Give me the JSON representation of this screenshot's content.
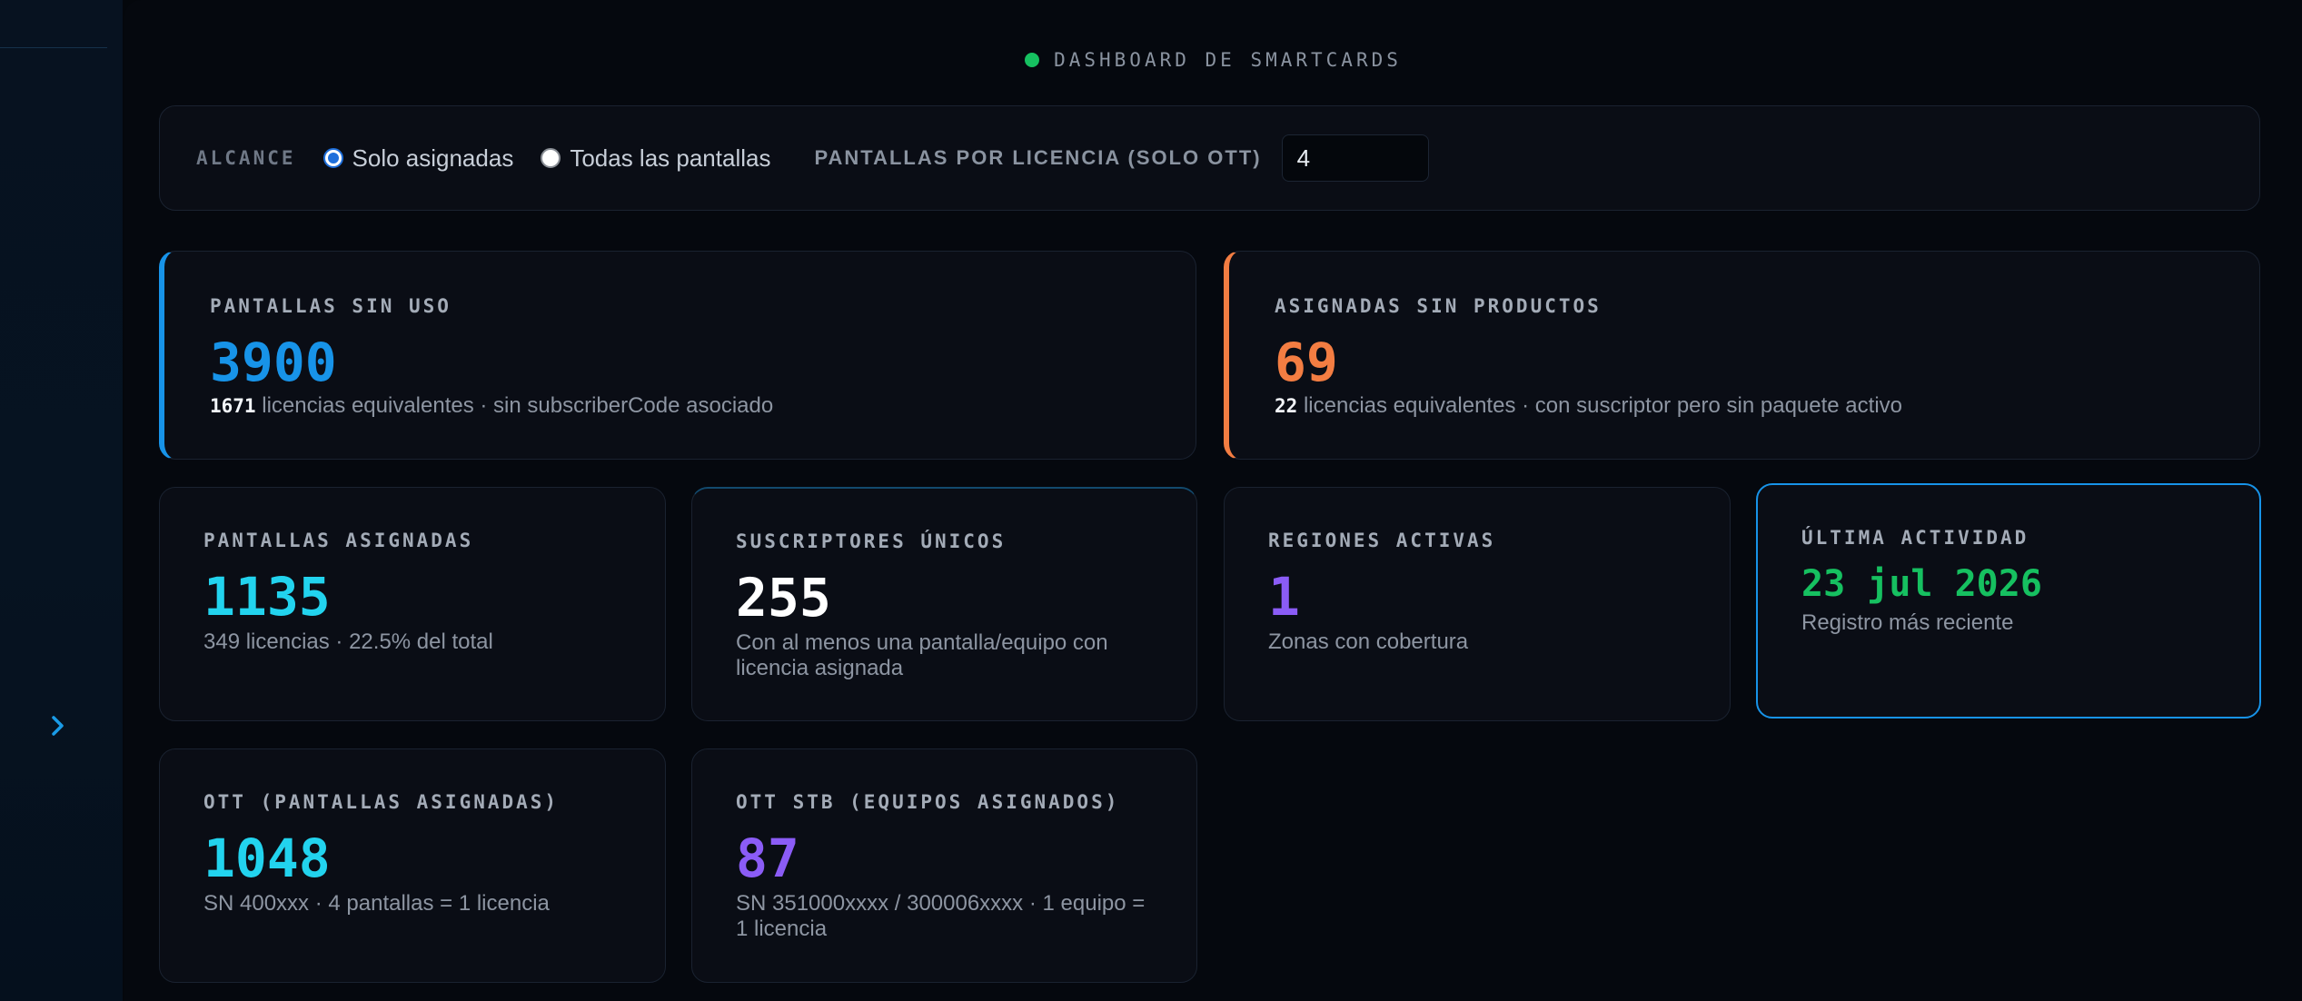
{
  "header": {
    "title": "DASHBOARD DE SMARTCARDS"
  },
  "scope": {
    "label": "ALCANCE",
    "options": [
      {
        "label": "Solo asignadas",
        "selected": true
      },
      {
        "label": "Todas las pantallas",
        "selected": false
      }
    ],
    "screens_per_license_label": "PANTALLAS POR LICENCIA (SOLO OTT)",
    "screens_per_license_value": "4"
  },
  "cards": {
    "unused": {
      "label": "PANTALLAS SIN USO",
      "value": "3900",
      "sub_strong": "1671",
      "sub_text": " licencias equivalentes · sin subscriberCode asociado",
      "color": "#1793e8"
    },
    "no_products": {
      "label": "ASIGNADAS SIN PRODUCTOS",
      "value": "69",
      "sub_strong": "22",
      "sub_text": " licencias equivalentes · con suscriptor pero sin paquete activo",
      "color": "#f37d42"
    },
    "assigned": {
      "label": "PANTALLAS ASIGNADAS",
      "value": "1135",
      "sub_text": "349 licencias · 22.5% del total",
      "color": "#22d3ee"
    },
    "subscribers": {
      "label": "SUSCRIPTORES ÚNICOS",
      "value": "255",
      "sub_text": "Con al menos una pantalla/equipo con licencia asignada",
      "color": "#ffffff"
    },
    "regions": {
      "label": "REGIONES ACTIVAS",
      "value": "1",
      "sub_text": "Zonas con cobertura",
      "color": "#8b5cf6"
    },
    "last_activity": {
      "label": "ÚLTIMA ACTIVIDAD",
      "value": "23 jul 2026",
      "sub_text": "Registro más reciente",
      "color": "#16c060"
    },
    "ott": {
      "label": "OTT (PANTALLAS ASIGNADAS)",
      "value": "1048",
      "sub_text": "SN 400xxx · 4 pantallas = 1 licencia",
      "color": "#22d3ee"
    },
    "ott_stb": {
      "label": "OTT STB (EQUIPOS ASIGNADOS)",
      "value": "87",
      "sub_text": "SN 351000xxxx / 300006xxxx · 1 equipo = 1 licencia",
      "color": "#8b5cf6"
    }
  }
}
